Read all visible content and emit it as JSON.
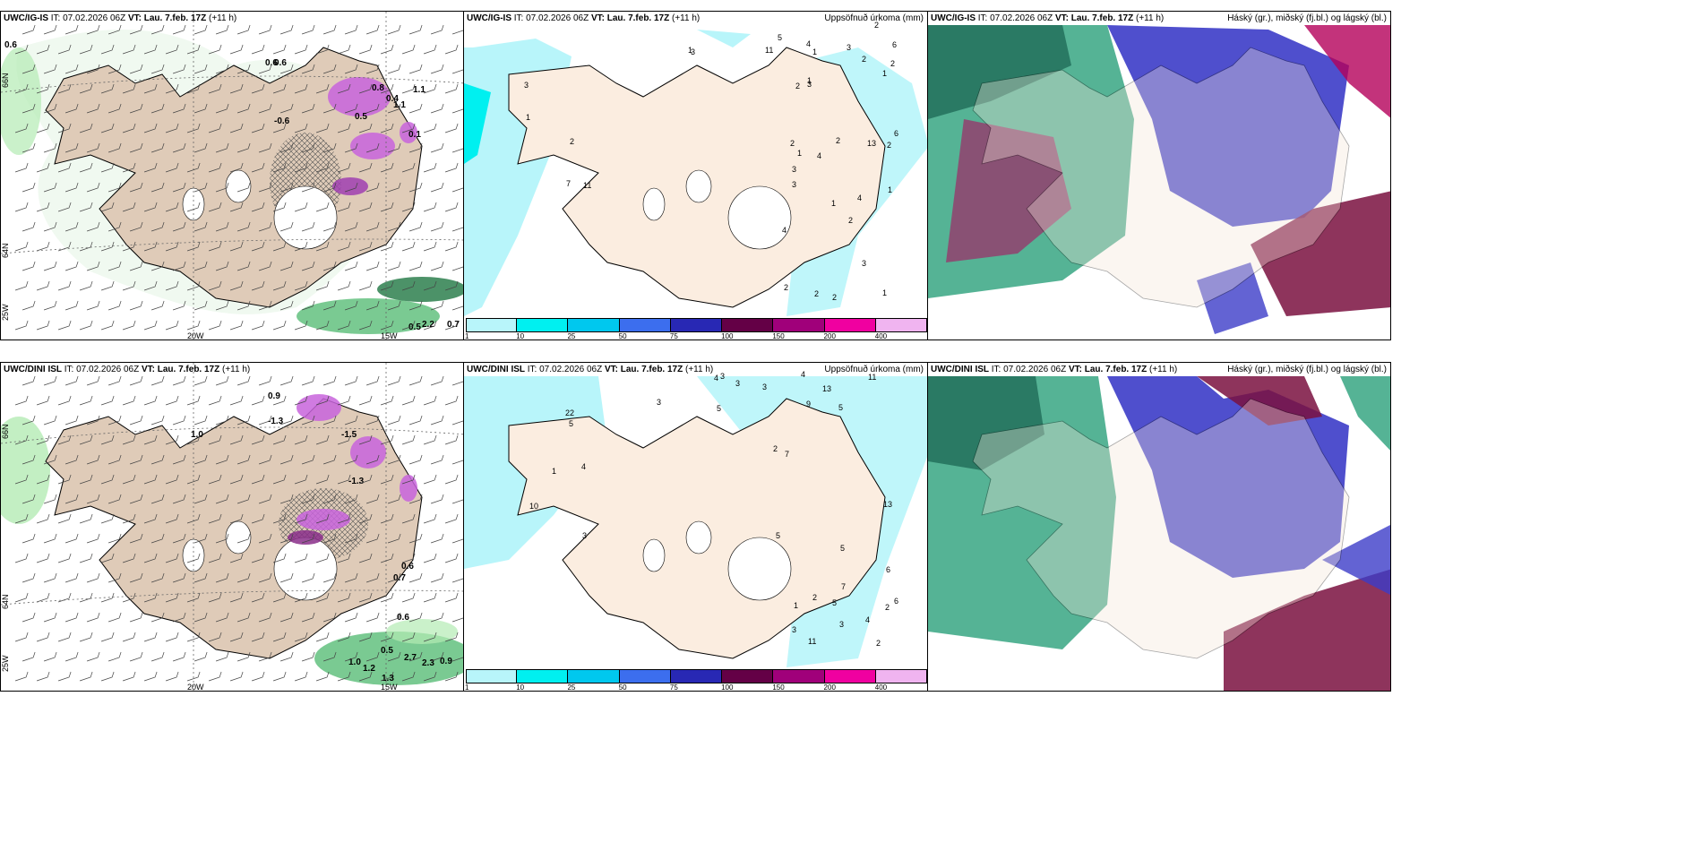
{
  "panels": [
    {
      "id": "p1",
      "model": "UWC/IG-IS",
      "init_label": "IT:",
      "init": "07.02.2026 06Z",
      "valid_label": "VT:",
      "valid": "Lau. 7.feb. 17Z",
      "lead": "(+11 h)",
      "right_title": ""
    },
    {
      "id": "p2",
      "model": "UWC/IG-IS",
      "init_label": "IT:",
      "init": "07.02.2026 06Z",
      "valid_label": "VT:",
      "valid": "Lau. 7.feb. 17Z",
      "lead": "(+11 h)",
      "right_title": "Uppsöfnuð úrkoma (mm)"
    },
    {
      "id": "p3",
      "model": "UWC/IG-IS",
      "init_label": "IT:",
      "init": "07.02.2026 06Z",
      "valid_label": "VT:",
      "valid": "Lau. 7.feb. 17Z",
      "lead": "(+11 h)",
      "right_title": "Háský (gr.), miðský (fj.bl.) og lágský (bl.)"
    },
    {
      "id": "p4",
      "model": "UWC/DINI ISL",
      "init_label": "IT:",
      "init": "07.02.2026 06Z",
      "valid_label": "VT:",
      "valid": "Lau. 7.feb. 17Z",
      "lead": "(+11 h)",
      "right_title": ""
    },
    {
      "id": "p5",
      "model": "UWC/DINI ISL",
      "init_label": "IT:",
      "init": "07.02.2026 06Z",
      "valid_label": "VT:",
      "valid": "Lau. 7.feb. 17Z",
      "lead": "(+11 h)",
      "right_title": "Uppsöfnuð úrkoma (mm)"
    },
    {
      "id": "p6",
      "model": "UWC/DINI ISL",
      "init_label": "IT:",
      "init": "07.02.2026 06Z",
      "valid_label": "VT:",
      "valid": "Lau. 7.feb. 17Z",
      "lead": "(+11 h)",
      "right_title": "Háský (gr.), miðský (fj.bl.) og lágský (bl.)"
    }
  ],
  "grid_labels": {
    "lat66": "66N",
    "lat64": "64N",
    "lon25": "25W",
    "lon20": "20W",
    "lon15": "15W"
  },
  "legend": {
    "ticks": [
      "1",
      "10",
      "25",
      "50",
      "75",
      "100",
      "150",
      "200",
      "400"
    ],
    "colors": [
      "#b8f5fa",
      "#00f0f0",
      "#00c8ee",
      "#3c6eee",
      "#2828b4",
      "#640046",
      "#a0007a",
      "#f000a0",
      "#f0b4f0"
    ]
  },
  "temp_labels_top": [
    "0.6",
    "0.6",
    "0.6",
    "1.1",
    "-0.6",
    "0.8",
    "1.1",
    "0.5",
    "2.2",
    "0.7",
    "0.4",
    "0.5",
    "0.1"
  ],
  "temp_labels_bottom": [
    "0.9",
    "-1.3",
    "1.0",
    "-1.5",
    "-1.3",
    "0.6",
    "0.7",
    "0.6",
    "0.5",
    "1.0",
    "1.2",
    "2.7",
    "0.9",
    "2.3",
    "1.3"
  ],
  "precip_labels_top": [
    "2",
    "1",
    "1",
    "2",
    "3",
    "4",
    "4",
    "3",
    "3",
    "4",
    "2",
    "6",
    "7",
    "4",
    "13",
    "2",
    "3",
    "11",
    "3",
    "2",
    "1",
    "2",
    "1",
    "2",
    "2",
    "5",
    "3",
    "2",
    "2",
    "1",
    "6",
    "11",
    "1",
    "1",
    "3",
    "2",
    "1",
    "1",
    "2"
  ],
  "precip_labels_bottom": [
    "5",
    "2",
    "9",
    "3",
    "3",
    "11",
    "11",
    "2",
    "3",
    "3",
    "3",
    "4",
    "4",
    "5",
    "5",
    "13",
    "13",
    "22",
    "10",
    "6",
    "7",
    "5",
    "3",
    "3",
    "1",
    "2",
    "5",
    "4",
    "7",
    "6",
    "5",
    "4",
    "2",
    "1"
  ],
  "colors": {
    "land": "#f5e6da",
    "land_hatch": "#e5d3c3",
    "green_light": "#b4ebb4",
    "green_mid": "#41b464",
    "green_dark": "#006428",
    "purple": "#c864dc",
    "high_cloud": "#2aa07a",
    "mid_cloud": "#b4005a",
    "low_cloud": "#3c3cc8"
  }
}
